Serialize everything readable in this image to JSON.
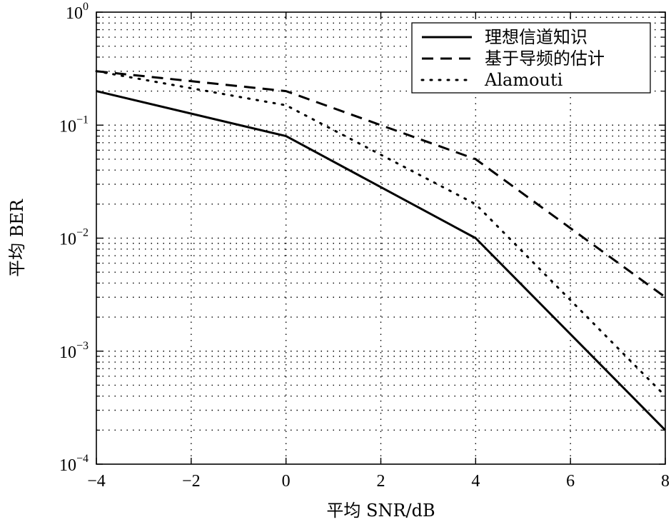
{
  "chart_data": {
    "type": "line",
    "xlabel": "平均 SNR/dB",
    "ylabel": "平均 BER",
    "xlim": [
      -4,
      8
    ],
    "ylim": [
      0.0001,
      1
    ],
    "yscale": "log",
    "grid": true,
    "legend_position": "top-right",
    "x_ticks": [
      -4,
      -2,
      0,
      2,
      4,
      6,
      8
    ],
    "x_tick_labels": [
      "−4",
      "−2",
      "0",
      "2",
      "4",
      "6",
      "8"
    ],
    "y_ticks": [
      1,
      0.1,
      0.01,
      0.001,
      0.0001
    ],
    "y_tick_labels": [
      {
        "base": "10",
        "exp": "0"
      },
      {
        "base": "10",
        "exp": "−1"
      },
      {
        "base": "10",
        "exp": "−2"
      },
      {
        "base": "10",
        "exp": "−3"
      },
      {
        "base": "10",
        "exp": "−4"
      }
    ],
    "series": [
      {
        "name": "理想信道知识",
        "style": "solid",
        "x": [
          -4,
          0,
          4,
          8
        ],
        "y": [
          0.2,
          0.08,
          0.01,
          0.0002
        ]
      },
      {
        "name": "基于导频的估计",
        "style": "dashed",
        "x": [
          -4,
          0,
          4,
          8
        ],
        "y": [
          0.3,
          0.2,
          0.05,
          0.003
        ]
      },
      {
        "name": "Alamouti",
        "style": "dotted",
        "x": [
          -4,
          0,
          4,
          8
        ],
        "y": [
          0.3,
          0.15,
          0.02,
          0.0004
        ]
      }
    ],
    "colors": {
      "line": "#000000",
      "background": "#ffffff"
    }
  }
}
